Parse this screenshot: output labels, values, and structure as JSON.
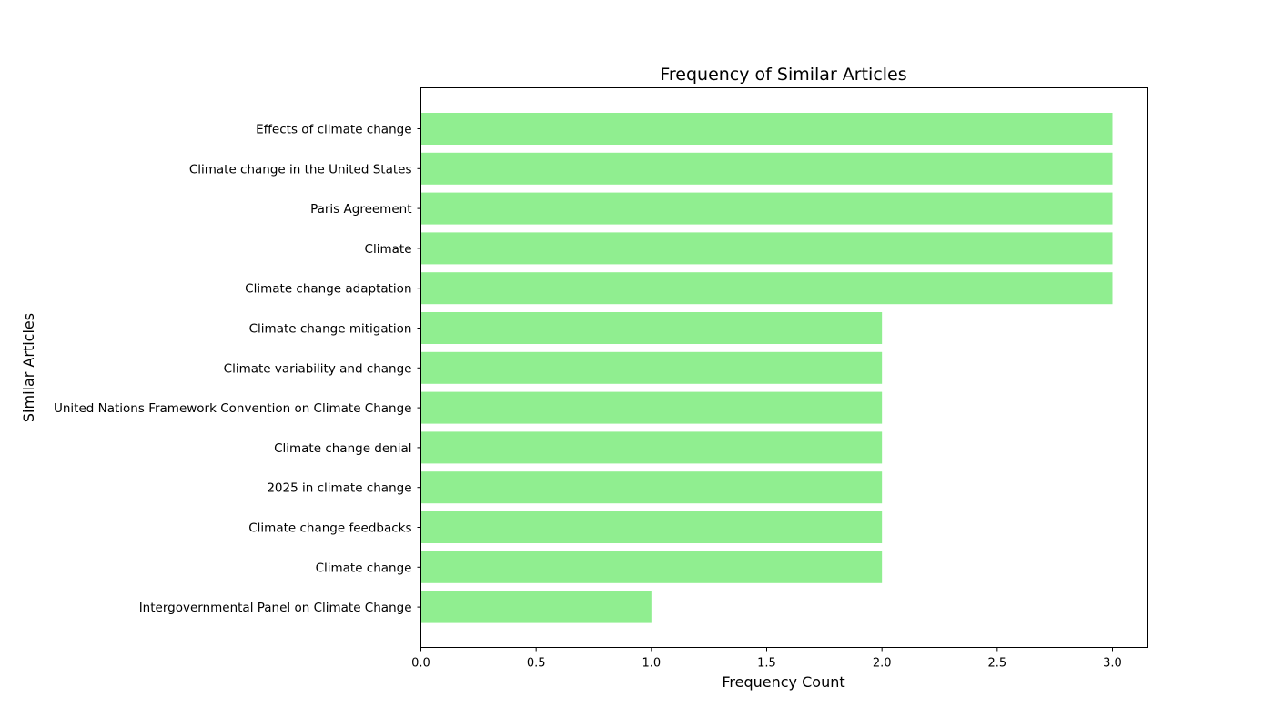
{
  "chart_data": {
    "type": "bar",
    "orientation": "horizontal",
    "title": "Frequency of Similar Articles",
    "xlabel": "Frequency Count",
    "ylabel": "Similar Articles",
    "categories": [
      "Effects of climate change",
      "Climate change in the United States",
      "Paris Agreement",
      "Climate",
      "Climate change adaptation",
      "Climate change mitigation",
      "Climate variability and change",
      "United Nations Framework Convention on Climate Change",
      "Climate change denial",
      "2025 in climate change",
      "Climate change feedbacks",
      "Climate change",
      "Intergovernmental Panel on Climate Change"
    ],
    "values": [
      3,
      3,
      3,
      3,
      3,
      2,
      2,
      2,
      2,
      2,
      2,
      2,
      1
    ],
    "xlim": [
      0,
      3.15
    ],
    "xticks": [
      "0.0",
      "0.5",
      "1.0",
      "1.5",
      "2.0",
      "2.5",
      "3.0"
    ],
    "grid": false,
    "legend": "none",
    "bar_color": "#90EE90"
  }
}
